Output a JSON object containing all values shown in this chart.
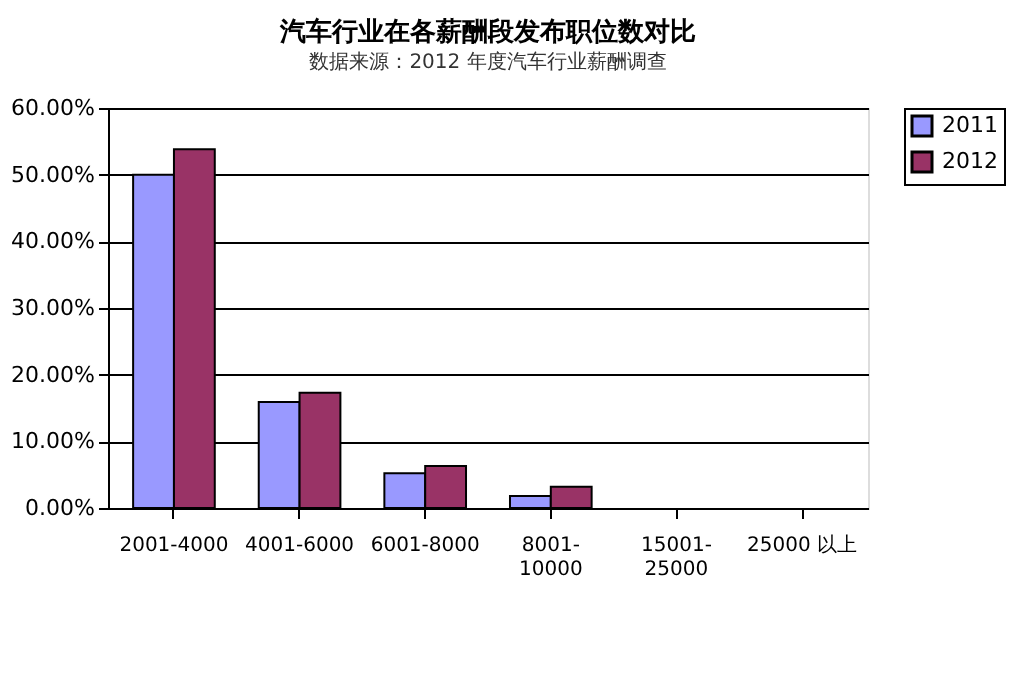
{
  "chart_data": {
    "type": "bar",
    "title": "汽车行业在各薪酬段发布职位数对比",
    "subtitle": "数据来源：2012 年度汽车行业薪酬调查",
    "categories": [
      "2001-4000",
      "4001-6000",
      "6001-8000",
      "8001-10000",
      "15001-25000",
      "25000 以上"
    ],
    "series": [
      {
        "name": "2011",
        "color": "#9999ff",
        "values": [
          50.0,
          15.9,
          5.2,
          1.8,
          null,
          null
        ]
      },
      {
        "name": "2012",
        "color": "#993366",
        "values": [
          53.8,
          17.3,
          6.3,
          3.2,
          null,
          null
        ]
      }
    ],
    "ylim": [
      0,
      60
    ],
    "yticks": [
      {
        "value": 0,
        "label": "0.00%"
      },
      {
        "value": 10,
        "label": "10.00%"
      },
      {
        "value": 20,
        "label": "20.00%"
      },
      {
        "value": 30,
        "label": "30.00%"
      },
      {
        "value": 40,
        "label": "40.00%"
      },
      {
        "value": 50,
        "label": "50.00%"
      },
      {
        "value": 60,
        "label": "60.00%"
      }
    ],
    "grid": "y",
    "legend": "right"
  }
}
